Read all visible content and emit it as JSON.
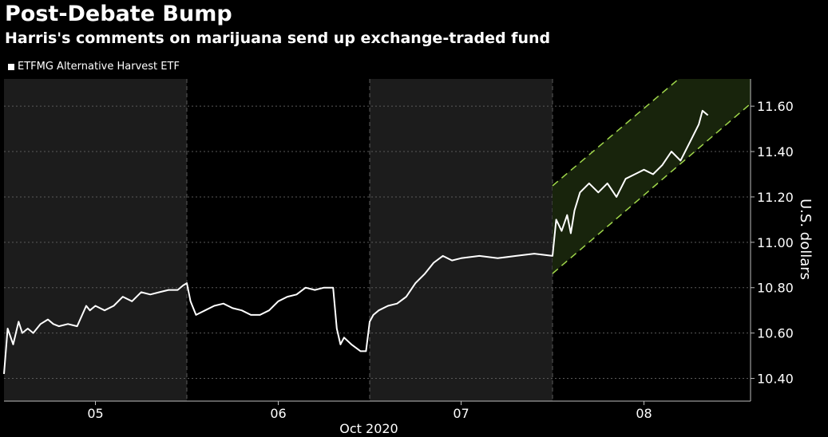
{
  "title": "Post-Debate Bump",
  "subtitle": "Harris's comments on marijuana send up exchange-traded fund",
  "legend": {
    "label": "ETFMG Alternative Harvest ETF"
  },
  "colors": {
    "background": "#000000",
    "shaded_session": "#1c1c1c",
    "line": "#ffffff",
    "channel_line": "#9fd64a",
    "channel_fill": "#18240c",
    "gridline": "#5a5a5a",
    "text": "#ffffff"
  },
  "chart_data": {
    "type": "line",
    "xlabel": "Oct 2020",
    "ylabel": "U.S. dollars",
    "x_ticks": [
      "05",
      "06",
      "07",
      "08"
    ],
    "y_ticks": [
      "10.40",
      "10.60",
      "10.80",
      "11.00",
      "11.20",
      "11.40",
      "11.60"
    ],
    "ylim": [
      10.3,
      11.72
    ],
    "xlim": [
      0,
      4.1
    ],
    "grid": true,
    "legend_position": "top-left",
    "shaded_sessions": [
      [
        0,
        1
      ],
      [
        2,
        3
      ]
    ],
    "series": [
      {
        "name": "ETFMG Alternative Harvest ETF",
        "x": [
          0.0,
          0.02,
          0.05,
          0.08,
          0.1,
          0.13,
          0.16,
          0.2,
          0.24,
          0.27,
          0.3,
          0.35,
          0.4,
          0.45,
          0.47,
          0.5,
          0.55,
          0.6,
          0.65,
          0.7,
          0.75,
          0.8,
          0.85,
          0.9,
          0.95,
          0.98,
          1.0,
          1.02,
          1.05,
          1.1,
          1.15,
          1.2,
          1.25,
          1.3,
          1.35,
          1.4,
          1.45,
          1.5,
          1.55,
          1.6,
          1.65,
          1.7,
          1.75,
          1.8,
          1.82,
          1.84,
          1.86,
          1.9,
          1.95,
          1.98,
          2.0,
          2.02,
          2.05,
          2.1,
          2.15,
          2.2,
          2.25,
          2.3,
          2.35,
          2.4,
          2.45,
          2.5,
          2.6,
          2.7,
          2.8,
          2.9,
          3.0,
          3.02,
          3.05,
          3.08,
          3.1,
          3.12,
          3.15,
          3.2,
          3.25,
          3.3,
          3.35,
          3.4,
          3.45,
          3.5,
          3.55,
          3.6,
          3.65,
          3.7,
          3.75,
          3.8,
          3.82,
          3.85
        ],
        "values": [
          10.42,
          10.62,
          10.55,
          10.65,
          10.6,
          10.62,
          10.6,
          10.64,
          10.66,
          10.64,
          10.63,
          10.64,
          10.63,
          10.72,
          10.7,
          10.72,
          10.7,
          10.72,
          10.76,
          10.74,
          10.78,
          10.77,
          10.78,
          10.79,
          10.79,
          10.81,
          10.82,
          10.74,
          10.68,
          10.7,
          10.72,
          10.73,
          10.71,
          10.7,
          10.68,
          10.68,
          10.7,
          10.74,
          10.76,
          10.77,
          10.8,
          10.79,
          10.8,
          10.8,
          10.62,
          10.55,
          10.58,
          10.55,
          10.52,
          10.52,
          10.65,
          10.68,
          10.7,
          10.72,
          10.73,
          10.76,
          10.82,
          10.86,
          10.91,
          10.94,
          10.92,
          10.93,
          10.94,
          10.93,
          10.94,
          10.95,
          10.94,
          11.1,
          11.05,
          11.12,
          11.04,
          11.14,
          11.22,
          11.26,
          11.22,
          11.26,
          11.2,
          11.28,
          11.3,
          11.32,
          11.3,
          11.34,
          11.4,
          11.36,
          11.44,
          11.52,
          11.58,
          11.56
        ]
      }
    ]
  }
}
